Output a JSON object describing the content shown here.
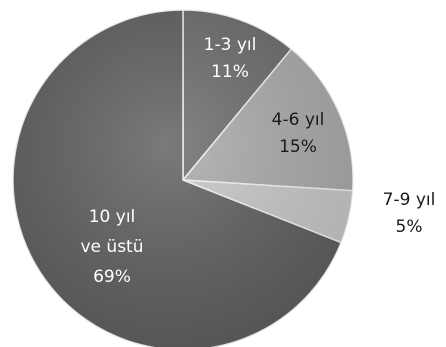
{
  "chart_data": {
    "type": "pie",
    "title": "",
    "categories": [
      "1-3 yıl",
      "4-6 yıl",
      "7-9 yıl",
      "10 yıl ve üstü"
    ],
    "values": [
      11,
      15,
      5,
      69
    ],
    "value_labels": [
      "11%",
      "15%",
      "5%",
      "69%"
    ],
    "label_lines": [
      [
        "1-3 yıl"
      ],
      [
        "4-6 yıl"
      ],
      [
        "7-9 yıl"
      ],
      [
        "10 yıl",
        "ve üstü"
      ]
    ],
    "start_angle_deg": 0,
    "direction": "clockwise",
    "legend": "none",
    "colors": [
      "#6a6a6a",
      "#a9a9a9",
      "#c7c7c7",
      "#5d5d5d"
    ],
    "label_colors": [
      "#ffffff",
      "#1a1a1a",
      "#1a1a1a",
      "#ffffff"
    ]
  }
}
